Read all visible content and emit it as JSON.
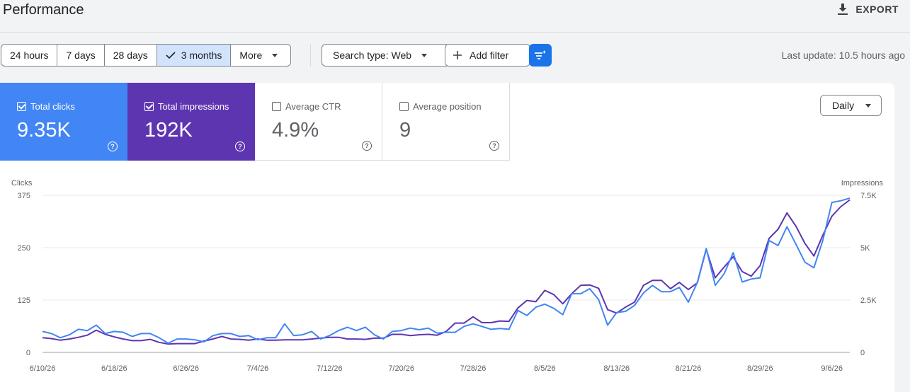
{
  "header": {
    "title": "Performance",
    "export_label": "EXPORT"
  },
  "toolbar": {
    "ranges": [
      "24 hours",
      "7 days",
      "28 days",
      "3 months"
    ],
    "selected_range": "3 months",
    "more_label": "More",
    "search_type_label": "Search type: Web",
    "add_filter_label": "Add filter",
    "last_update": "Last update: 10.5 hours ago"
  },
  "metrics": {
    "clicks": {
      "label": "Total clicks",
      "value": "9.35K",
      "checked": true,
      "color": "#4285f4"
    },
    "impressions": {
      "label": "Total impressions",
      "value": "192K",
      "checked": true,
      "color": "#5e35b1"
    },
    "ctr": {
      "label": "Average CTR",
      "value": "4.9%",
      "checked": false
    },
    "position": {
      "label": "Average position",
      "value": "9",
      "checked": false
    }
  },
  "granularity": {
    "selected": "Daily"
  },
  "chart_data": {
    "type": "line",
    "left_axis_label": "Clicks",
    "right_axis_label": "Impressions",
    "left_ticks": [
      "0",
      "125",
      "250",
      "375"
    ],
    "right_ticks": [
      "0",
      "2.5K",
      "5K",
      "7.5K"
    ],
    "ylim_left": [
      0,
      375
    ],
    "ylim_right": [
      0,
      7500
    ],
    "x_tick_labels": [
      "6/10/26",
      "6/18/26",
      "6/26/26",
      "7/4/26",
      "7/12/26",
      "7/20/26",
      "7/28/26",
      "8/5/26",
      "8/13/26",
      "8/21/26",
      "8/29/26",
      "9/6/26"
    ],
    "x_start": "6/10/26",
    "grid": true,
    "series": [
      {
        "name": "Total clicks",
        "axis": "left",
        "color": "#4285f4",
        "values": [
          50,
          45,
          35,
          42,
          55,
          52,
          65,
          45,
          50,
          48,
          38,
          45,
          45,
          35,
          22,
          32,
          32,
          30,
          25,
          40,
          45,
          45,
          38,
          40,
          30,
          35,
          35,
          68,
          40,
          42,
          50,
          32,
          40,
          52,
          60,
          52,
          60,
          42,
          32,
          50,
          52,
          58,
          54,
          58,
          46,
          48,
          48,
          62,
          68,
          62,
          55,
          57,
          55,
          100,
          88,
          108,
          115,
          105,
          90,
          140,
          140,
          152,
          126,
          65,
          95,
          98,
          112,
          142,
          160,
          145,
          145,
          155,
          120,
          167,
          248,
          160,
          188,
          238,
          168,
          175,
          178,
          267,
          255,
          300,
          258,
          215,
          202,
          268,
          358,
          362,
          368
        ]
      },
      {
        "name": "Total impressions",
        "axis": "right",
        "color": "#5e35b1",
        "values": [
          700,
          660,
          580,
          640,
          720,
          820,
          1060,
          860,
          740,
          640,
          560,
          560,
          620,
          480,
          400,
          420,
          420,
          420,
          540,
          640,
          760,
          640,
          620,
          580,
          640,
          580,
          580,
          600,
          600,
          600,
          640,
          680,
          720,
          720,
          640,
          640,
          620,
          680,
          680,
          860,
          860,
          800,
          840,
          860,
          820,
          1000,
          1400,
          1400,
          1700,
          1420,
          1420,
          1500,
          1480,
          2120,
          2480,
          2420,
          2960,
          2760,
          2320,
          2800,
          3200,
          3220,
          3060,
          2040,
          1880,
          2160,
          2400,
          3200,
          3440,
          3440,
          3040,
          3340,
          3000,
          3320,
          4920,
          3560,
          4080,
          4560,
          3860,
          3640,
          4140,
          5440,
          5880,
          6660,
          6020,
          5200,
          4600,
          5600,
          6500,
          6960,
          7280
        ]
      }
    ]
  }
}
